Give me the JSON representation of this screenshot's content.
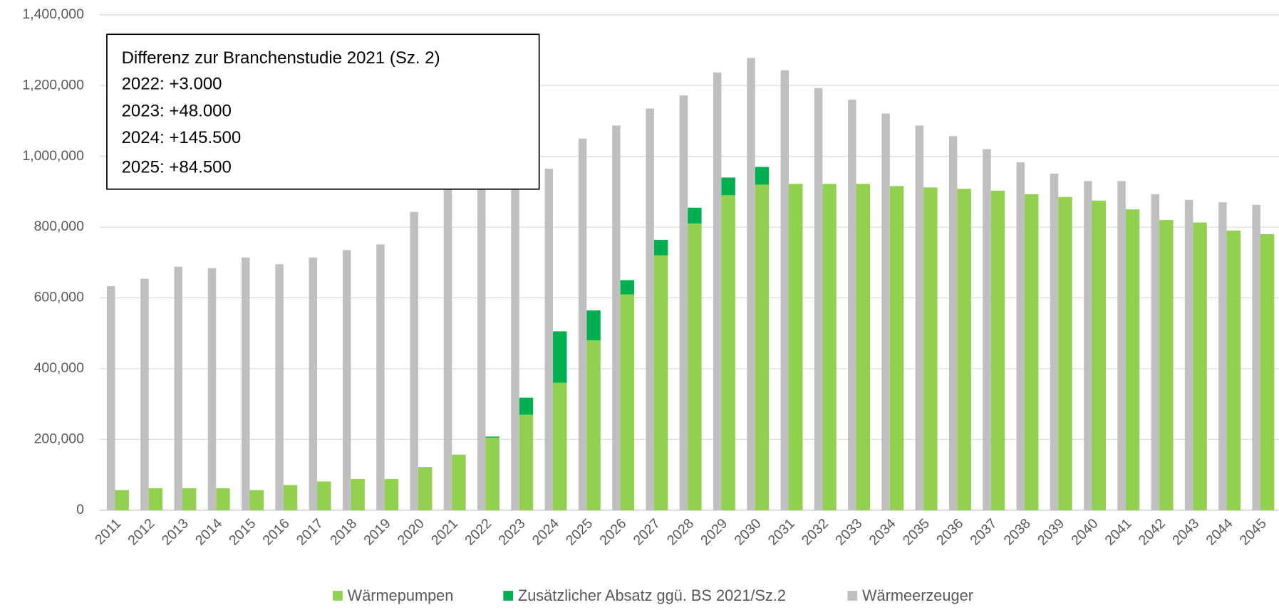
{
  "chart_data": {
    "type": "bar",
    "categories": [
      "2011",
      "2012",
      "2013",
      "2014",
      "2015",
      "2016",
      "2017",
      "2018",
      "2019",
      "2020",
      "2021",
      "2022",
      "2023",
      "2024",
      "2025",
      "2026",
      "2027",
      "2028",
      "2029",
      "2030",
      "2031",
      "2032",
      "2033",
      "2034",
      "2035",
      "2036",
      "2037",
      "2038",
      "2039",
      "2040",
      "2041",
      "2042",
      "2043",
      "2044",
      "2045"
    ],
    "series": [
      {
        "name": "Wärmepumpen",
        "color": "#92d050",
        "stack": "a",
        "values": [
          57000,
          62000,
          62000,
          62000,
          57000,
          71000,
          81000,
          88000,
          88000,
          122000,
          157000,
          205000,
          270000,
          360000,
          480000,
          610000,
          720000,
          810000,
          890000,
          920000,
          922000,
          922000,
          922000,
          916000,
          912000,
          908000,
          903000,
          893000,
          885000,
          875000,
          850000,
          820000,
          813000,
          790000,
          780000
        ]
      },
      {
        "name": "Zusätzlicher Absatz ggü. BS 2021/Sz.2",
        "color": "#00b050",
        "stack": "a",
        "values": [
          null,
          null,
          null,
          null,
          null,
          null,
          null,
          null,
          null,
          null,
          null,
          3000,
          48000,
          145500,
          84500,
          40000,
          44000,
          45000,
          50000,
          50000,
          null,
          null,
          null,
          null,
          null,
          null,
          null,
          null,
          null,
          null,
          null,
          null,
          null,
          null,
          null
        ]
      },
      {
        "name": "Wärmeerzeuger",
        "color": "#bfbfbf",
        "stack": "b",
        "values": [
          633000,
          654000,
          688000,
          684000,
          714000,
          695000,
          714000,
          735000,
          751000,
          843000,
          920000,
          925000,
          930000,
          965000,
          1050000,
          1087000,
          1135000,
          1172000,
          1237000,
          1278000,
          1243000,
          1193000,
          1160000,
          1121000,
          1087000,
          1057000,
          1020000,
          983000,
          951000,
          930000,
          930000,
          893000,
          877000,
          870000,
          863000
        ]
      }
    ],
    "ylim": [
      0,
      1400000
    ],
    "yticks": [
      0,
      {
        "value": 200000,
        "label": "200,000"
      },
      {
        "value": 400000,
        "label": "400,000"
      },
      {
        "value": 600000,
        "label": "600,000"
      },
      {
        "value": 800000,
        "label": "800,000"
      },
      {
        "value": 1000000,
        "label": "1,000,000"
      },
      {
        "value": 1200000,
        "label": "1,200,000"
      },
      {
        "value": 1400000,
        "label": "1,400,000"
      }
    ],
    "grid": true,
    "legend": "bottom",
    "annotation": [
      "Differenz zur Branchenstudie 2021  (Sz. 2)",
      "2022:  +3.000",
      "2023:  +48.000",
      "2024:  +145.500",
      "2025:  +84.500"
    ]
  }
}
